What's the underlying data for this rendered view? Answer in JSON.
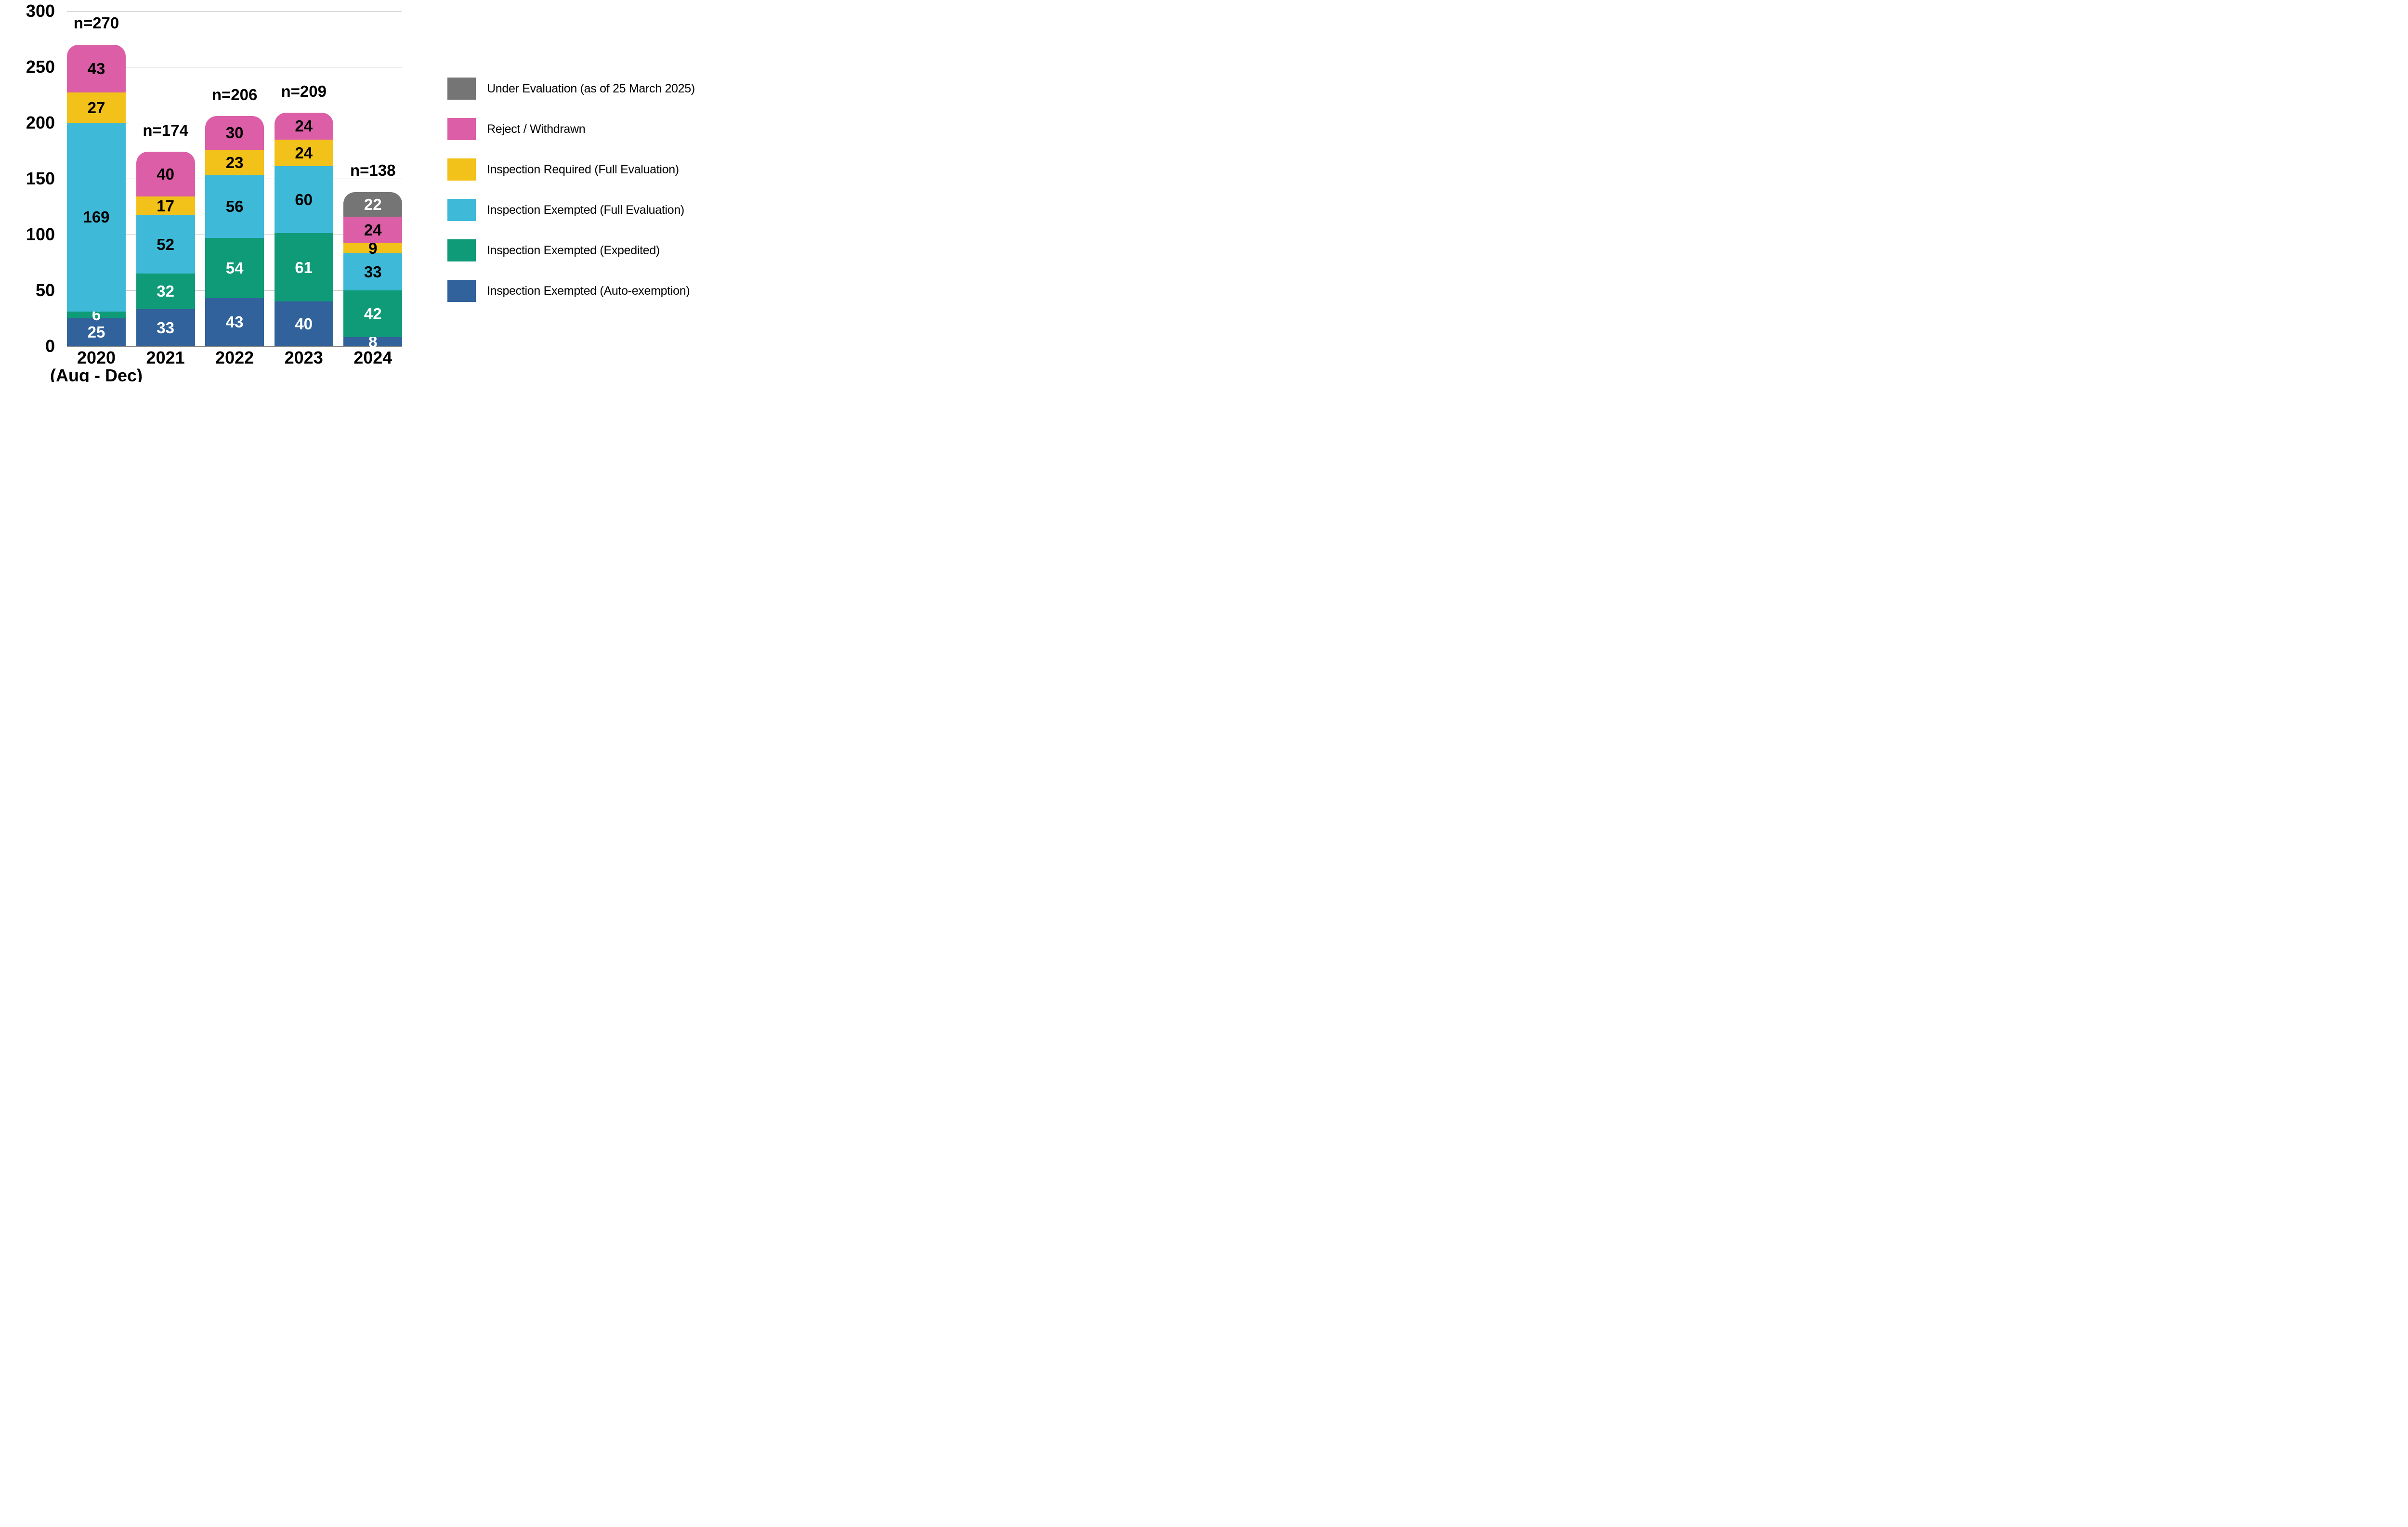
{
  "chart_data": {
    "type": "bar",
    "stacked": true,
    "title": "",
    "xlabel": "",
    "ylabel": "",
    "categories": [
      "2020",
      "2021",
      "2022",
      "2023",
      "2024"
    ],
    "category_sublabels": [
      "(Aug - Dec)",
      "",
      "",
      "",
      ""
    ],
    "n_labels": [
      "n=270",
      "n=174",
      "n=206",
      "n=209",
      "n=138"
    ],
    "series": [
      {
        "name": "Inspection Exempted (Auto-exemption)",
        "color": "#31629B",
        "label_color": "#FFFFFF",
        "values": [
          25,
          33,
          43,
          40,
          8
        ]
      },
      {
        "name": "Inspection Exempted (Expedited)",
        "color": "#0F9B78",
        "label_color": "#FFFFFF",
        "values": [
          6,
          32,
          54,
          61,
          42
        ]
      },
      {
        "name": "Inspection Exempted (Full Evaluation)",
        "color": "#3FB9D8",
        "label_color": "#000000",
        "values": [
          169,
          52,
          56,
          60,
          33
        ]
      },
      {
        "name": "Inspection Required (Full Evaluation)",
        "color": "#F2C11A",
        "label_color": "#000000",
        "values": [
          27,
          17,
          23,
          24,
          9
        ]
      },
      {
        "name": "Reject / Withdrawn",
        "color": "#DB5EA7",
        "label_color": "#000000",
        "values": [
          43,
          40,
          30,
          24,
          24
        ]
      },
      {
        "name": "Under Evaluation (as of 25 March 2025)",
        "color": "#757575",
        "label_color": "#FFFFFF",
        "values": [
          0,
          0,
          0,
          0,
          22
        ]
      }
    ],
    "totals": [
      270,
      174,
      206,
      209,
      138
    ],
    "y_axis": {
      "min": 0,
      "max": 300,
      "step": 50,
      "ticks": [
        "0",
        "50",
        "100",
        "150",
        "200",
        "250",
        "300"
      ]
    },
    "grid": true,
    "legend": {
      "position": "right",
      "items": [
        {
          "label": "Under Evaluation (as of 25 March 2025)",
          "color": "#757575"
        },
        {
          "label": "Reject / Withdrawn",
          "color": "#DB5EA7"
        },
        {
          "label": "Inspection Required (Full Evaluation)",
          "color": "#F2C11A"
        },
        {
          "label": "Inspection Exempted (Full Evaluation)",
          "color": "#3FB9D8"
        },
        {
          "label": "Inspection Exempted (Expedited)",
          "color": "#0F9B78"
        },
        {
          "label": "Inspection Exempted (Auto-exemption)",
          "color": "#31629B"
        }
      ]
    },
    "colors": {
      "background": "#FFFFFF",
      "gridline": "#C6C6C6",
      "baseline": "#7F7F7F"
    }
  }
}
